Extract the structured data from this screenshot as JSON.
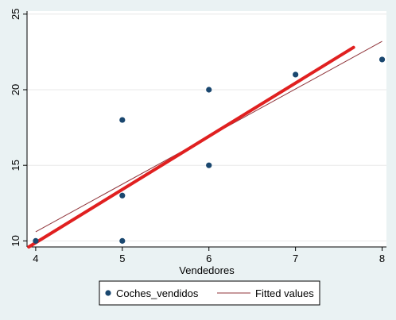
{
  "chart_data": {
    "type": "scatter",
    "xlabel": "Vendedores",
    "ylabel": "",
    "xlim": [
      3.9,
      8.05
    ],
    "ylim": [
      9.6,
      25.2
    ],
    "xticks": [
      4,
      5,
      6,
      7,
      8
    ],
    "yticks": [
      10,
      15,
      20,
      25
    ],
    "grid": "horizontal",
    "legend_position": "bottom",
    "series": [
      {
        "name": "Coches_vendidos",
        "kind": "scatter",
        "color": "#1a476f",
        "points": [
          {
            "x": 4,
            "y": 10
          },
          {
            "x": 5,
            "y": 10
          },
          {
            "x": 5,
            "y": 13
          },
          {
            "x": 5,
            "y": 18
          },
          {
            "x": 6,
            "y": 15
          },
          {
            "x": 6,
            "y": 20
          },
          {
            "x": 7,
            "y": 21
          },
          {
            "x": 8,
            "y": 22
          }
        ]
      },
      {
        "name": "Fitted values",
        "kind": "line",
        "color": "#90353b",
        "points": [
          {
            "x": 4,
            "y": 10.6
          },
          {
            "x": 8,
            "y": 23.2
          }
        ]
      }
    ],
    "overlay_line": {
      "color": "#e02020",
      "points": [
        {
          "x": 3.92,
          "y": 9.6
        },
        {
          "x": 7.67,
          "y": 22.8
        }
      ]
    }
  }
}
